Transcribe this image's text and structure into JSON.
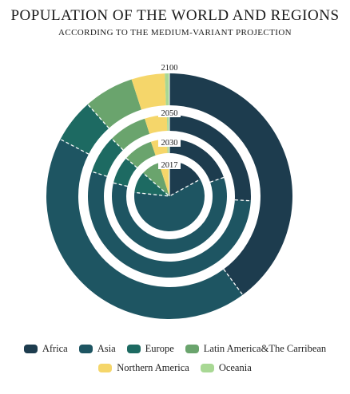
{
  "title": "POPULATION OF THE WORLD AND REGIONS",
  "subtitle": "ACCORDING TO THE MEDIUM-VARIANT PROJECTION",
  "colors": {
    "Africa": "#1d3c4e",
    "Asia": "#1e5562",
    "Europe": "#1d6a62",
    "Latin America&The Carribean": "#6aa46d",
    "Northern America": "#f5d66a",
    "Oceania": "#a8d894"
  },
  "chart_data": {
    "type": "pie",
    "subtype": "concentric-rings",
    "rings": [
      {
        "label": "2017",
        "values": {
          "Africa": 17,
          "Asia": 59.7,
          "Europe": 9.8,
          "Latin America&The Carribean": 8.6,
          "Northern America": 4.4,
          "Oceania": 0.5
        }
      },
      {
        "label": "2030",
        "values": {
          "Africa": 19.7,
          "Asia": 59,
          "Europe": 7.8,
          "Latin America&The Carribean": 8.3,
          "Northern America": 4.5,
          "Oceania": 0.7
        }
      },
      {
        "label": "2050",
        "values": {
          "Africa": 25.9,
          "Asia": 54,
          "Europe": 7.6,
          "Latin America&The Carribean": 7.6,
          "Northern America": 4.4,
          "Oceania": 0.5
        }
      },
      {
        "label": "2100",
        "values": {
          "Africa": 40,
          "Asia": 43,
          "Europe": 5.8,
          "Latin America&The Carribean": 6.6,
          "Northern America": 4.4,
          "Oceania": 0.6
        }
      }
    ],
    "categories": [
      "Africa",
      "Asia",
      "Europe",
      "Latin America&The Carribean",
      "Northern America",
      "Oceania"
    ]
  },
  "legend": {
    "row1": [
      "Africa",
      "Asia",
      "Europe",
      "Latin America&The Carribean"
    ],
    "row2": [
      "Northern America",
      "Oceania"
    ]
  }
}
